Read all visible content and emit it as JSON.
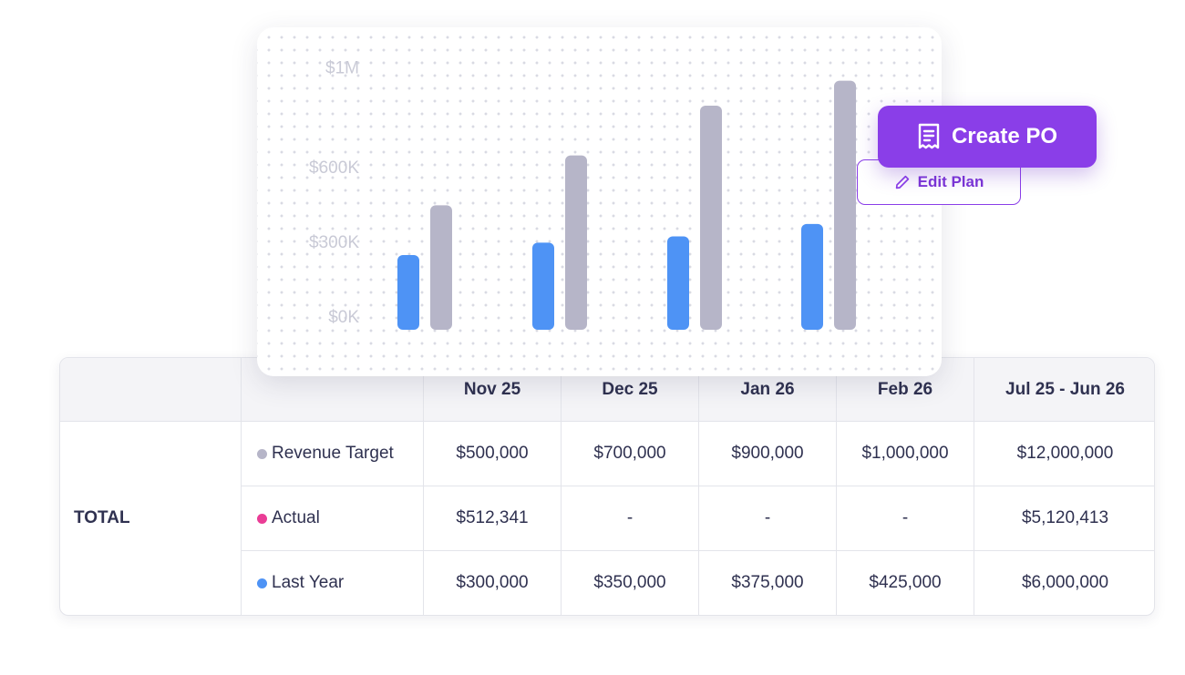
{
  "buttons": {
    "create_po": {
      "label": "Create PO",
      "icon": "receipt-icon",
      "color": "#8a3ee8"
    },
    "edit_plan": {
      "label": "Edit Plan",
      "icon": "pencil-icon",
      "color": "#8a3ee8"
    }
  },
  "table": {
    "columns": [
      "",
      "",
      "Nov 25",
      "Dec 25",
      "Jan 26",
      "Feb 26",
      "Jul 25 - Jun 26"
    ],
    "group_label": "TOTAL",
    "rows": [
      {
        "label": "Revenue Target",
        "dot_color": "#b6b5c8",
        "values": [
          "$500,000",
          "$700,000",
          "$900,000",
          "$1,000,000",
          "$12,000,000"
        ]
      },
      {
        "label": "Actual",
        "dot_color": "#ea3d96",
        "values": [
          "$512,341",
          "-",
          "-",
          "-",
          "$5,120,413"
        ]
      },
      {
        "label": "Last Year",
        "dot_color": "#4e93f5",
        "values": [
          "$300,000",
          "$350,000",
          "$375,000",
          "$425,000",
          "$6,000,000"
        ]
      }
    ]
  },
  "chart_data": {
    "type": "bar",
    "categories": [
      "Nov 25",
      "Dec 25",
      "Jan 26",
      "Feb 26"
    ],
    "series": [
      {
        "name": "Last Year",
        "color": "#4e93f5",
        "values": [
          300000,
          350000,
          375000,
          425000
        ]
      },
      {
        "name": "Revenue Target",
        "color": "#b6b5c8",
        "values": [
          500000,
          700000,
          900000,
          1000000
        ]
      }
    ],
    "yticks": [
      {
        "value": 0,
        "label": "$0K"
      },
      {
        "value": 300000,
        "label": "$300K"
      },
      {
        "value": 600000,
        "label": "$600K"
      },
      {
        "value": 1000000,
        "label": "$1M"
      }
    ],
    "grid": "dots",
    "legend": "none"
  }
}
